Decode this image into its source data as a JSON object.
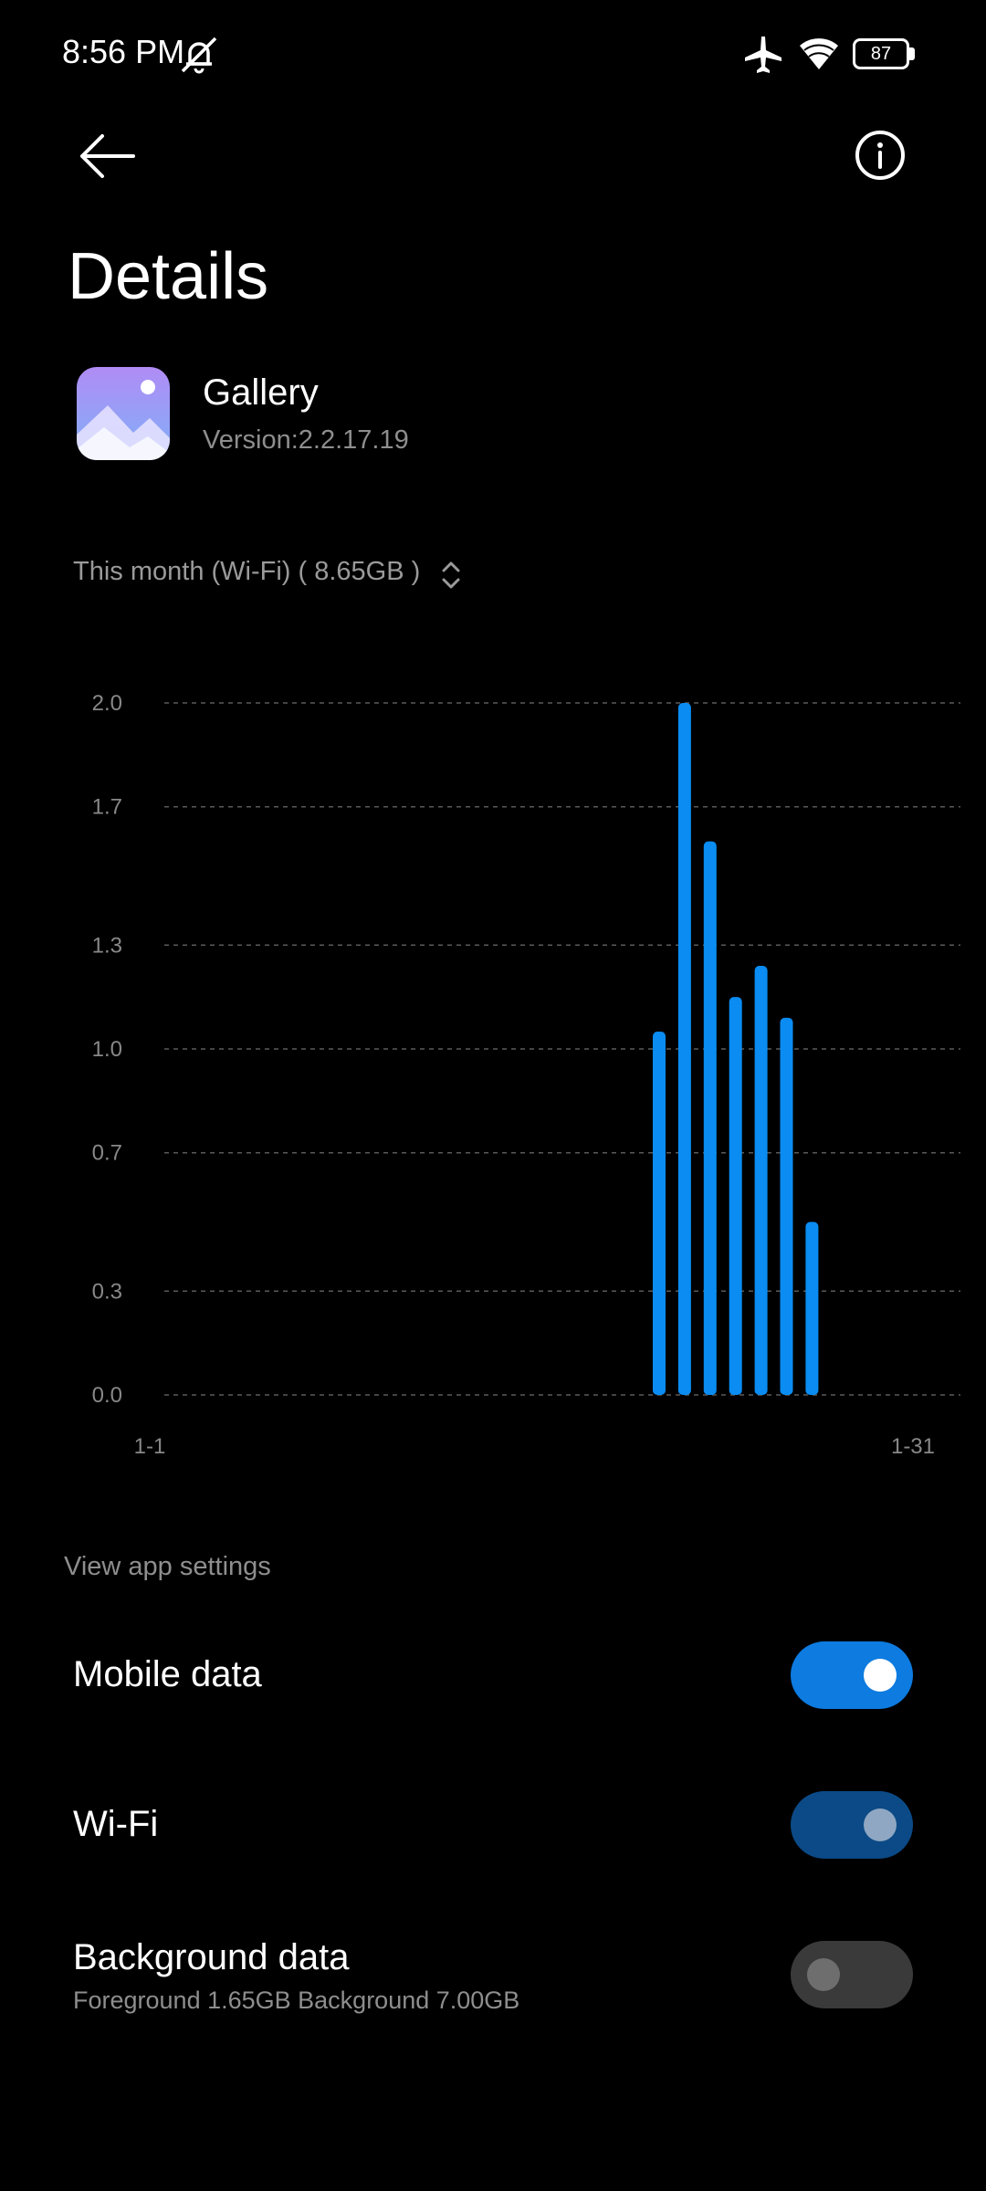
{
  "status_bar": {
    "time": "8:56 PM",
    "battery": "87",
    "icons": [
      "bell-muted-icon",
      "airplane-icon",
      "wifi-icon",
      "battery-icon"
    ]
  },
  "header": {
    "title": "Details",
    "icons": [
      "back-arrow-icon",
      "info-icon"
    ]
  },
  "app": {
    "name": "Gallery",
    "version": "Version:2.2.17.19"
  },
  "period": {
    "label": "This month (Wi-Fi) ( 8.65GB )",
    "icon": "expand-arrows-icon"
  },
  "chart_data": {
    "type": "bar",
    "title": "",
    "xlabel": "",
    "ylabel": "",
    "ylim": [
      0,
      2.0
    ],
    "yticks": [
      "0.0",
      "0.3",
      "0.7",
      "1.0",
      "1.3",
      "1.7",
      "2.0"
    ],
    "xtick_labels": [
      "1-1",
      "1-31"
    ],
    "days": 31,
    "grid": true,
    "bar_color": "#0a8cf2",
    "series": [
      {
        "values": [
          0,
          0,
          0,
          0,
          0,
          0,
          0,
          0,
          0,
          0,
          0,
          0,
          0,
          0,
          0,
          0,
          0,
          0,
          0,
          0,
          1.05,
          2.0,
          1.6,
          1.15,
          1.24,
          1.09,
          0.5,
          0,
          0,
          0,
          0
        ]
      }
    ]
  },
  "settings": {
    "link": "View app settings",
    "rows": [
      {
        "label": "Mobile data",
        "sub": "",
        "state": "on"
      },
      {
        "label": "Wi-Fi",
        "sub": "",
        "state": "on-disabled"
      },
      {
        "label": "Background data",
        "sub": "Foreground 1.65GB  Background 7.00GB",
        "state": "off"
      }
    ]
  },
  "colors": {
    "accent": "#0a8cf2",
    "toggle_on": "#0d7be0",
    "toggle_on_disabled": "#0b4a86",
    "toggle_off": "#3a3a3a"
  }
}
